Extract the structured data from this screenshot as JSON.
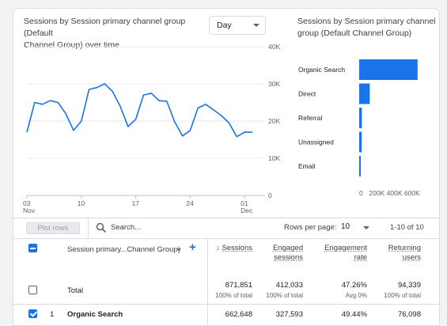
{
  "line_chart": {
    "title_line1": "Sessions by Session primary channel group (Default",
    "title_line2": "Channel Group) over time",
    "granularity": "Day",
    "y_ticks": [
      "40K",
      "30K",
      "20K",
      "10K",
      "0"
    ],
    "x_ticks": [
      {
        "day": "03",
        "month": "Nov"
      },
      {
        "day": "10",
        "month": ""
      },
      {
        "day": "17",
        "month": ""
      },
      {
        "day": "24",
        "month": ""
      },
      {
        "day": "01",
        "month": "Dec"
      }
    ],
    "series_color": "#1a73e8"
  },
  "bar_chart": {
    "title_line1": "Sessions by Session primary channel",
    "title_line2": "group (Default Channel Group)",
    "x_ticks": [
      "0",
      "200K",
      "400K",
      "600K"
    ],
    "bar_color": "#1a73e8"
  },
  "chart_data": [
    {
      "type": "line",
      "title": "Sessions by Session primary channel group (Default Channel Group) over time",
      "x": [
        "Nov 3",
        "Nov 4",
        "Nov 5",
        "Nov 6",
        "Nov 7",
        "Nov 8",
        "Nov 9",
        "Nov 10",
        "Nov 11",
        "Nov 12",
        "Nov 13",
        "Nov 14",
        "Nov 15",
        "Nov 16",
        "Nov 17",
        "Nov 18",
        "Nov 19",
        "Nov 20",
        "Nov 21",
        "Nov 22",
        "Nov 23",
        "Nov 24",
        "Nov 25",
        "Nov 26",
        "Nov 27",
        "Nov 28",
        "Nov 29",
        "Nov 30",
        "Dec 1",
        "Dec 2"
      ],
      "series": [
        {
          "values": [
            17000,
            25000,
            24500,
            25500,
            25000,
            22000,
            17500,
            20000,
            28500,
            29000,
            30000,
            28000,
            24000,
            18500,
            20500,
            27000,
            27500,
            25500,
            25300,
            19800,
            16000,
            17500,
            23500,
            24500,
            23000,
            21500,
            19500,
            15800,
            17000,
            17000
          ]
        }
      ],
      "ylim": [
        0,
        40000
      ],
      "ylabel": "",
      "xlabel": "",
      "grid": true
    },
    {
      "type": "bar",
      "orientation": "horizontal",
      "title": "Sessions by Session primary channel group (Default Channel Group)",
      "categories": [
        "Organic Search",
        "Direct",
        "Referral",
        "Unassigned",
        "Email"
      ],
      "values": [
        662648,
        120000,
        30000,
        28000,
        12000
      ],
      "xlim": [
        0,
        700000
      ],
      "xlabel": "",
      "ylabel": ""
    }
  ],
  "table": {
    "plot_rows_label": "Plot rows",
    "search_placeholder": "Search...",
    "rows_per_page_label": "Rows per page:",
    "rows_per_page_value": "10",
    "pagination": "1-10 of 10",
    "dimension_header": "Session primary...Channel Group)",
    "columns": [
      {
        "line1": "Sessions",
        "line2": ""
      },
      {
        "line1": "Engaged",
        "line2": "sessions"
      },
      {
        "line1": "Engagement",
        "line2": "rate"
      },
      {
        "line1": "Returning",
        "line2": "users"
      }
    ],
    "total": {
      "label": "Total",
      "values": [
        "871,851",
        "412,033",
        "47.26%",
        "94,339"
      ],
      "subs": [
        "100% of total",
        "100% of total",
        "Avg 0%",
        "100% of total"
      ]
    },
    "rows": [
      {
        "index": "1",
        "name": "Organic Search",
        "values": [
          "662,648",
          "327,593",
          "49.44%",
          "76,098"
        ]
      }
    ]
  }
}
